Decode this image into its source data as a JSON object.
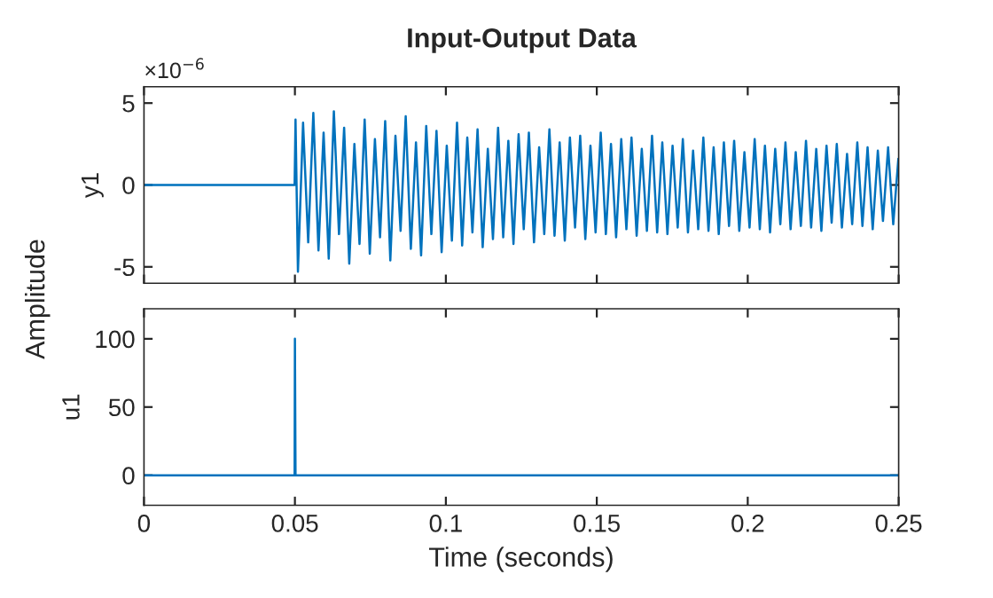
{
  "chart_data": [
    {
      "type": "line",
      "title": "Input-Output Data",
      "ylabel": "y1",
      "annotations": [
        "×10$^{−6}$",
        "Amplitude"
      ],
      "tick_labels": "y",
      "grid": false,
      "legend": false,
      "xlim": [
        0,
        0.25
      ],
      "xticks": [
        0,
        0.05,
        0.1,
        0.15,
        0.2,
        0.25
      ],
      "ylim": [
        -6,
        6
      ],
      "yticks": [
        -5,
        0,
        5
      ],
      "series": [
        {
          "color": "#0072bd",
          "x": [
            0,
            0.0499,
            0.0502,
            0.051,
            0.0527,
            0.0544,
            0.0561,
            0.0578,
            0.0595,
            0.0612,
            0.0629,
            0.0646,
            0.0663,
            0.068,
            0.0697,
            0.0714,
            0.0731,
            0.0748,
            0.0765,
            0.0782,
            0.0799,
            0.0816,
            0.0833,
            0.085,
            0.0867,
            0.0884,
            0.0901,
            0.0918,
            0.0935,
            0.0952,
            0.0969,
            0.0986,
            0.1003,
            0.102,
            0.1037,
            0.1054,
            0.1071,
            0.1088,
            0.1105,
            0.1122,
            0.1139,
            0.1156,
            0.1173,
            0.119,
            0.1207,
            0.1224,
            0.1241,
            0.1258,
            0.1275,
            0.1292,
            0.1309,
            0.1326,
            0.1343,
            0.136,
            0.1377,
            0.1394,
            0.1411,
            0.1428,
            0.1445,
            0.1462,
            0.1479,
            0.1496,
            0.1513,
            0.153,
            0.1547,
            0.1564,
            0.1581,
            0.1598,
            0.1615,
            0.1632,
            0.1649,
            0.1666,
            0.1683,
            0.17,
            0.1717,
            0.1734,
            0.1751,
            0.1768,
            0.1785,
            0.1802,
            0.1819,
            0.1836,
            0.1853,
            0.187,
            0.1887,
            0.1904,
            0.1921,
            0.1938,
            0.1955,
            0.1972,
            0.1989,
            0.2006,
            0.2023,
            0.204,
            0.2057,
            0.2074,
            0.2091,
            0.2108,
            0.2125,
            0.2142,
            0.2159,
            0.2176,
            0.2193,
            0.221,
            0.2227,
            0.2244,
            0.2261,
            0.2278,
            0.2295,
            0.2312,
            0.2329,
            0.2346,
            0.2363,
            0.238,
            0.2397,
            0.2414,
            0.2431,
            0.2448,
            0.2465,
            0.2482,
            0.2499
          ],
          "values": [
            0,
            0,
            4.0,
            -5.3,
            3.8,
            -3.5,
            4.4,
            -4.0,
            3.2,
            -4.5,
            4.5,
            -3.0,
            3.5,
            -4.8,
            2.5,
            -3.6,
            4.0,
            -4.2,
            2.8,
            -3.2,
            3.9,
            -4.6,
            3.0,
            -2.8,
            4.2,
            -3.9,
            2.6,
            -4.3,
            3.6,
            -3.0,
            3.3,
            -4.1,
            2.4,
            -3.4,
            3.8,
            -3.7,
            2.9,
            -2.9,
            3.4,
            -3.8,
            2.2,
            -3.3,
            3.5,
            -3.2,
            2.7,
            -3.6,
            3.1,
            -2.7,
            3.2,
            -3.5,
            2.3,
            -3.0,
            3.4,
            -3.1,
            2.6,
            -3.4,
            2.9,
            -2.6,
            3.0,
            -3.3,
            2.4,
            -2.9,
            3.2,
            -3.0,
            2.5,
            -3.2,
            2.8,
            -2.7,
            2.9,
            -3.1,
            2.2,
            -2.8,
            3.0,
            -2.9,
            2.6,
            -3.0,
            2.4,
            -2.6,
            2.8,
            -2.9,
            2.1,
            -2.7,
            2.9,
            -2.8,
            2.3,
            -3.0,
            2.6,
            -2.5,
            2.7,
            -2.8,
            2.0,
            -2.6,
            2.8,
            -2.7,
            2.4,
            -2.9,
            2.2,
            -2.4,
            2.6,
            -2.7,
            2.0,
            -2.5,
            2.7,
            -2.6,
            2.2,
            -2.8,
            2.4,
            -2.3,
            2.5,
            -2.6,
            1.9,
            -2.4,
            2.6,
            -2.5,
            2.3,
            -2.7,
            2.1,
            -2.2,
            2.3,
            -2.4,
            1.6
          ]
        }
      ]
    },
    {
      "type": "line",
      "ylabel": "u1",
      "xlabel": "Time (seconds)",
      "grid": false,
      "legend": false,
      "xlim": [
        0,
        0.25
      ],
      "xticks": [
        0,
        0.05,
        0.1,
        0.15,
        0.2,
        0.25
      ],
      "ylim": [
        -22,
        122
      ],
      "yticks": [
        0,
        50,
        100
      ],
      "series": [
        {
          "color": "#0072bd",
          "x": [
            0,
            0.0499,
            0.05,
            0.0502,
            0.25
          ],
          "values": [
            0,
            0,
            100,
            0,
            0
          ]
        }
      ]
    }
  ]
}
